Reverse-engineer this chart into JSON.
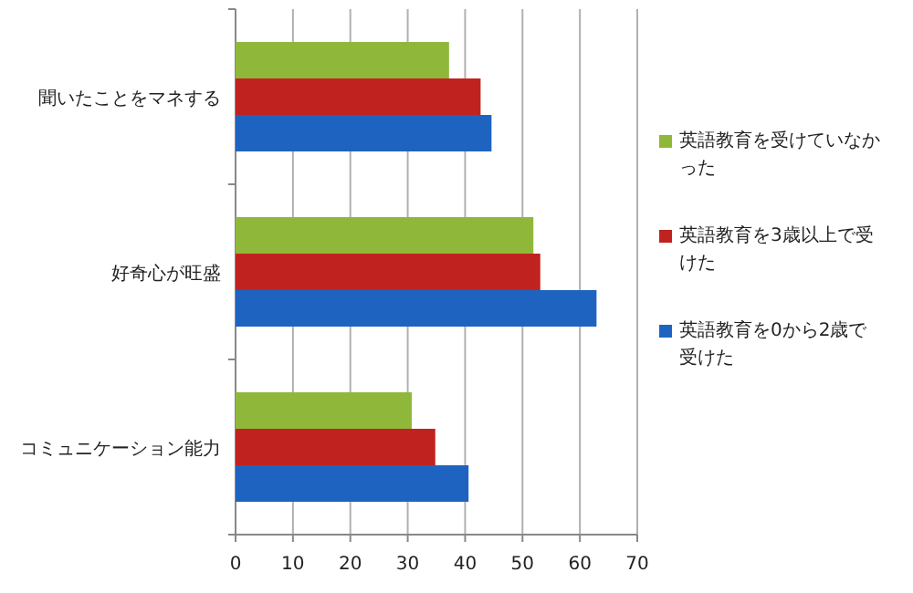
{
  "chart_data": {
    "type": "bar",
    "orientation": "horizontal",
    "categories": [
      "聞いたことをマネする",
      "好奇心が旺盛",
      "コミュニケーション能力"
    ],
    "series": [
      {
        "name": "英語教育を受けていなかった",
        "color": "#8fb83a",
        "values": [
          37.2,
          51.9,
          30.7
        ]
      },
      {
        "name": "英語教育を3歳以上で受けた",
        "color": "#c0231f",
        "values": [
          42.7,
          53.1,
          34.8
        ]
      },
      {
        "name": "英語教育を0から2歳で受けた",
        "color": "#1f63c0",
        "values": [
          44.6,
          62.9,
          40.6
        ]
      }
    ],
    "xlim": [
      0,
      70
    ],
    "xticks": [
      0,
      10,
      20,
      30,
      40,
      50,
      60,
      70
    ],
    "grid": "x",
    "legend": "right"
  }
}
